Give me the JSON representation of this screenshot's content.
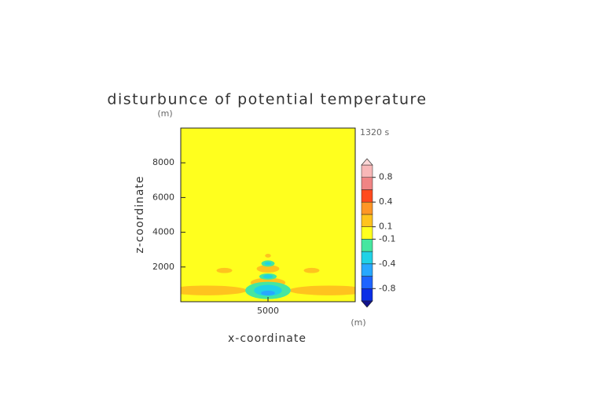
{
  "chart_data": {
    "type": "contour",
    "title": "disturbunce of potential temperature",
    "time_label": "1320 s",
    "x_label": "x-coordinate",
    "y_label": "z-coordinate",
    "x_unit": "(m)",
    "y_unit": "(m)",
    "xlim": [
      0,
      10000
    ],
    "ylim": [
      0,
      10000
    ],
    "xticks": [
      5000
    ],
    "yticks": [
      2000,
      4000,
      6000,
      8000
    ],
    "background_color": "#ffff1e",
    "levels": [
      -1,
      -0.8,
      -0.6,
      -0.4,
      -0.2,
      -0.1,
      0.1,
      0.2,
      0.4,
      0.6,
      0.8,
      1
    ],
    "level_colors": [
      "#0a2ee6",
      "#1e64ff",
      "#28a8ff",
      "#20d2e6",
      "#46e6a0",
      "#ffff1e",
      "#ffc31e",
      "#ff9626",
      "#ff4a1e",
      "#f08484",
      "#f8b8b8"
    ],
    "under_color": "#12128c",
    "over_color": "#fcd6d6",
    "colorbar_ticks": [
      0.8,
      0.4,
      0.1,
      -0.1,
      -0.4,
      -0.8
    ],
    "regions": [
      {
        "x": 1500,
        "z": 650,
        "dx": 2300,
        "dz": 280,
        "value": 0.15
      },
      {
        "x": 8500,
        "z": 650,
        "dx": 2300,
        "dz": 280,
        "value": 0.15
      },
      {
        "x": 2500,
        "z": 1800,
        "dx": 450,
        "dz": 150,
        "value": 0.15
      },
      {
        "x": 7500,
        "z": 1800,
        "dx": 450,
        "dz": 150,
        "value": 0.15
      },
      {
        "x": 5000,
        "z": 1900,
        "dx": 650,
        "dz": 220,
        "value": 0.15
      },
      {
        "x": 5000,
        "z": 1100,
        "dx": 1000,
        "dz": 280,
        "value": 0.15
      },
      {
        "x": 5000,
        "z": 650,
        "dx": 1300,
        "dz": 500,
        "value": -0.15
      },
      {
        "x": 5000,
        "z": 650,
        "dx": 800,
        "dz": 320,
        "value": -0.3
      },
      {
        "x": 5000,
        "z": 500,
        "dx": 400,
        "dz": 140,
        "value": -0.5
      },
      {
        "x": 5000,
        "z": 1450,
        "dx": 500,
        "dz": 180,
        "value": -0.15
      },
      {
        "x": 5000,
        "z": 1450,
        "dx": 280,
        "dz": 110,
        "value": -0.3
      },
      {
        "x": 5000,
        "z": 2200,
        "dx": 380,
        "dz": 180,
        "value": -0.15
      },
      {
        "x": 5000,
        "z": 2200,
        "dx": 200,
        "dz": 90,
        "value": -0.3
      },
      {
        "x": 5000,
        "z": 2650,
        "dx": 170,
        "dz": 110,
        "value": 0.15
      }
    ]
  }
}
